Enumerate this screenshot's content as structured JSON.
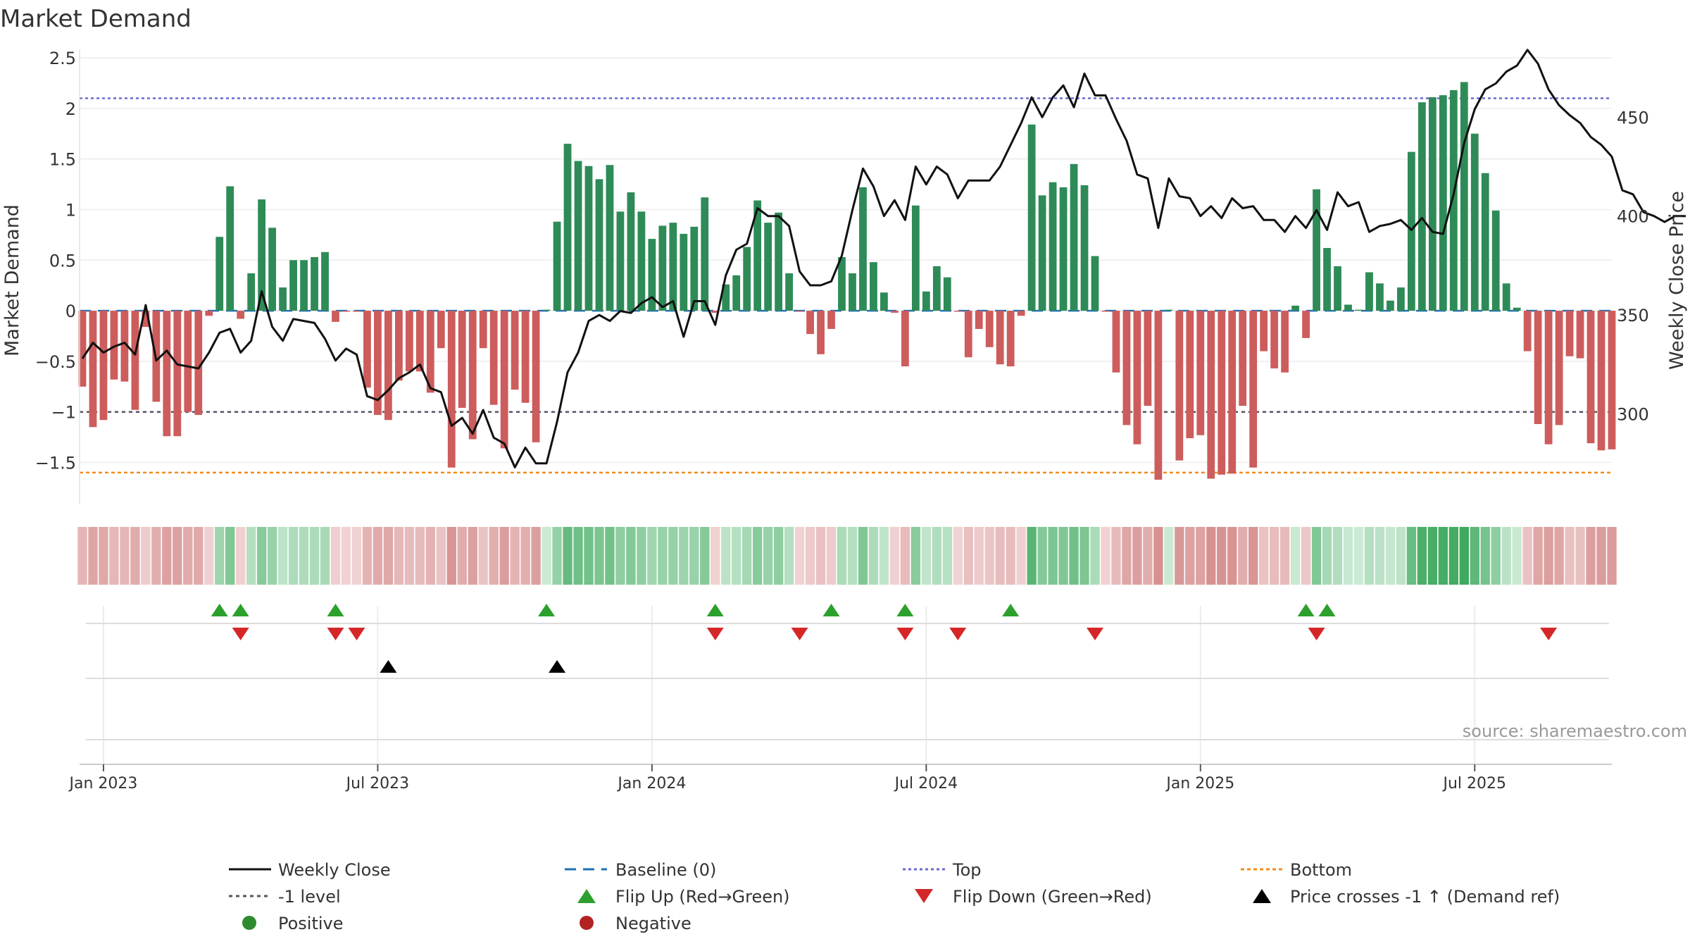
{
  "chart_data": {
    "type": "bar",
    "title": "Market Demand",
    "ylabel": "Market Demand",
    "ylabel_right": "Weekly Close Price",
    "ylim": [
      -1.9,
      2.5
    ],
    "ylim_right": [
      255,
      480
    ],
    "y_ticks": [
      {
        "v": 2.5,
        "label": "2.5"
      },
      {
        "v": 2,
        "label": "2"
      },
      {
        "v": 1.5,
        "label": "1.5"
      },
      {
        "v": 1,
        "label": "1"
      },
      {
        "v": 0.5,
        "label": "0.5"
      },
      {
        "v": 0,
        "label": "0"
      },
      {
        "v": -0.5,
        "label": "−0.5"
      },
      {
        "v": -1,
        "label": "−1"
      },
      {
        "v": -1.5,
        "label": "−1.5"
      }
    ],
    "y_right_ticks": [
      {
        "v": 450,
        "label": "450"
      },
      {
        "v": 400,
        "label": "400"
      },
      {
        "v": 350,
        "label": "350"
      },
      {
        "v": 300,
        "label": "300"
      }
    ],
    "x_ticks": [
      {
        "week": 2,
        "label": "Jan 2023"
      },
      {
        "week": 28,
        "label": "Jul 2023"
      },
      {
        "week": 54,
        "label": "Jan 2024"
      },
      {
        "week": 80,
        "label": "Jul 2024"
      },
      {
        "week": 106,
        "label": "Jan 2025"
      },
      {
        "week": 132,
        "label": "Jul 2025"
      }
    ],
    "reference_lines": {
      "top": 2.1,
      "bottom": -1.6,
      "minus_one": -1,
      "baseline": 0
    },
    "demand": [
      -0.75,
      -1.15,
      -1.08,
      -0.68,
      -0.7,
      -0.98,
      -0.16,
      -0.9,
      -1.24,
      -1.24,
      -1.0,
      -1.03,
      -0.05,
      0.73,
      1.23,
      -0.08,
      0.37,
      1.1,
      0.82,
      0.23,
      0.5,
      0.5,
      0.53,
      0.58,
      -0.11,
      -0.01,
      -0.01,
      -0.76,
      -1.03,
      -1.08,
      -0.69,
      -0.6,
      -0.6,
      -0.81,
      -0.37,
      -1.55,
      -0.96,
      -1.27,
      -0.37,
      -0.93,
      -1.36,
      -0.78,
      -0.91,
      -1.3,
      0.01,
      0.88,
      1.65,
      1.48,
      1.43,
      1.3,
      1.44,
      0.98,
      1.17,
      0.98,
      0.71,
      0.84,
      0.87,
      0.76,
      0.83,
      1.12,
      -0.02,
      0.26,
      0.35,
      0.63,
      1.09,
      0.87,
      0.97,
      0.37,
      -0.01,
      -0.23,
      -0.43,
      -0.18,
      0.53,
      0.37,
      1.22,
      0.48,
      0.18,
      -0.02,
      -0.55,
      1.04,
      0.19,
      0.44,
      0.33,
      -0.01,
      -0.46,
      -0.18,
      -0.36,
      -0.53,
      -0.55,
      -0.05,
      1.84,
      1.14,
      1.27,
      1.22,
      1.45,
      1.24,
      0.54,
      -0.01,
      -0.61,
      -1.13,
      -1.32,
      -0.94,
      -1.67,
      0.01,
      -1.48,
      -1.26,
      -1.23,
      -1.66,
      -1.62,
      -1.61,
      -0.94,
      -1.55,
      -0.4,
      -0.57,
      -0.61,
      0.05,
      -0.27,
      1.2,
      0.62,
      0.44,
      0.06,
      0.01,
      0.38,
      0.27,
      0.1,
      0.23,
      1.57,
      2.06,
      2.11,
      2.13,
      2.18,
      2.26,
      1.75,
      1.36,
      0.99,
      0.27,
      0.03,
      -0.4,
      -1.12,
      -1.32,
      -1.13,
      -0.45,
      -0.47,
      -1.31,
      -1.38,
      -1.37
    ],
    "price": [
      328,
      336,
      331,
      334,
      336,
      330,
      355,
      327,
      332,
      325,
      324,
      323,
      331,
      341,
      343,
      331,
      337,
      362,
      344,
      337,
      348,
      347,
      346,
      338,
      327,
      333,
      330,
      309,
      307,
      312,
      318,
      321,
      325,
      313,
      311,
      294,
      298,
      290,
      302,
      288,
      285,
      273,
      283,
      275,
      275,
      296,
      321,
      331,
      347,
      350,
      347,
      352,
      351,
      356,
      359,
      354,
      357,
      339,
      357,
      357,
      345,
      370,
      383,
      386,
      404,
      400,
      400,
      395,
      372,
      365,
      365,
      367,
      380,
      403,
      424,
      415,
      400,
      408,
      398,
      425,
      416,
      425,
      421,
      409,
      418,
      418,
      418,
      425,
      436,
      447,
      460,
      450,
      460,
      466,
      455,
      472,
      461,
      461,
      449,
      438,
      421,
      419,
      394,
      419,
      410,
      409,
      400,
      405,
      399,
      409,
      404,
      405,
      398,
      398,
      392,
      400,
      394,
      403,
      393,
      412,
      405,
      407,
      392,
      395,
      396,
      398,
      393,
      399,
      392,
      391,
      411,
      437,
      454,
      464,
      467,
      473,
      476,
      484,
      477,
      464,
      456,
      451,
      447,
      440,
      436,
      430,
      413,
      411,
      402,
      400,
      397,
      400,
      400
    ],
    "flip_up": [
      13,
      15,
      24,
      44,
      60,
      71,
      78,
      88,
      116,
      118
    ],
    "flip_down": [
      15,
      24,
      26,
      60,
      68,
      78,
      83,
      96,
      117,
      139
    ],
    "price_cross_up": [
      29,
      45
    ],
    "intensity_strip": "per-week heat strip: green = positive demand, red = negative demand, darker = stronger"
  },
  "source_note": "source: sharemaestro.com",
  "legend": [
    {
      "key": "weekly_close",
      "label": "Weekly Close"
    },
    {
      "key": "baseline",
      "label": "Baseline (0)"
    },
    {
      "key": "top",
      "label": "Top"
    },
    {
      "key": "bottom",
      "label": "Bottom"
    },
    {
      "key": "minus_one",
      "label": "-1 level"
    },
    {
      "key": "flip_up",
      "label": "Flip Up (Red→Green)"
    },
    {
      "key": "flip_down",
      "label": "Flip Down (Green→Red)"
    },
    {
      "key": "price_cross",
      "label": "Price crosses -1 ↑ (Demand ref)"
    },
    {
      "key": "positive",
      "label": "Positive"
    },
    {
      "key": "negative",
      "label": "Negative"
    }
  ],
  "colors": {
    "positive_bar": "#2e8b57",
    "negative_bar": "#cd5c5c",
    "price_line": "#111111",
    "top_line": "#6a6acd",
    "bottom_line": "#f28c1e",
    "minus_one_line": "#555566",
    "baseline": "#1f6fb2",
    "flip_up": "#2ca02c",
    "flip_down": "#d62728",
    "price_cross": "#000000",
    "positive_dot": "#2e8b2e",
    "negative_dot": "#b22222"
  }
}
